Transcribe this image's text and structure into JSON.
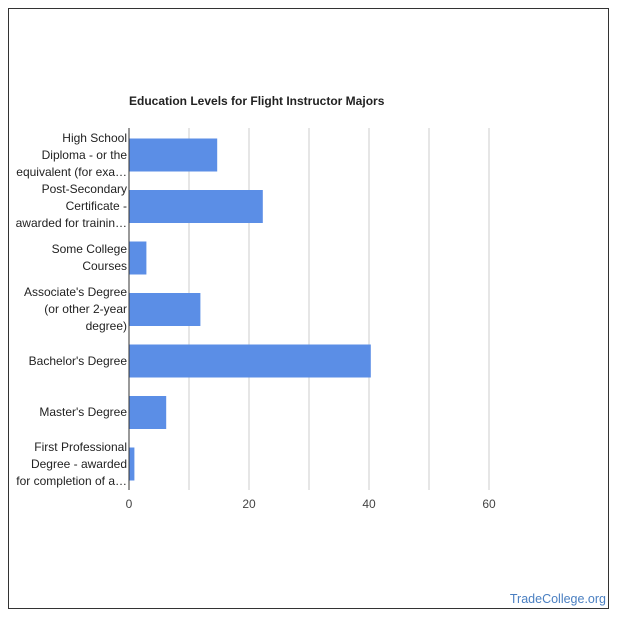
{
  "chart_data": {
    "type": "bar",
    "orientation": "horizontal",
    "title": "Education Levels for Flight Instructor Majors",
    "categories": [
      [
        "High School",
        "Diploma - or the",
        "equivalent (for exa…"
      ],
      [
        "Post-Secondary",
        "Certificate -",
        "awarded for trainin…"
      ],
      [
        "Some College",
        "Courses"
      ],
      [
        "Associate's Degree",
        "(or other 2-year",
        "degree)"
      ],
      [
        "Bachelor's Degree"
      ],
      [
        "Master's Degree"
      ],
      [
        "First Professional",
        "Degree - awarded",
        "for completion of a…"
      ]
    ],
    "values": [
      14.7,
      22.3,
      2.9,
      11.9,
      40.3,
      6.2,
      0.9
    ],
    "x_ticks": [
      0,
      20,
      40,
      60
    ],
    "xlim": [
      0,
      60
    ],
    "grid": true,
    "bar_color": "#5b8ee6"
  },
  "watermark": "TradeCollege.org"
}
